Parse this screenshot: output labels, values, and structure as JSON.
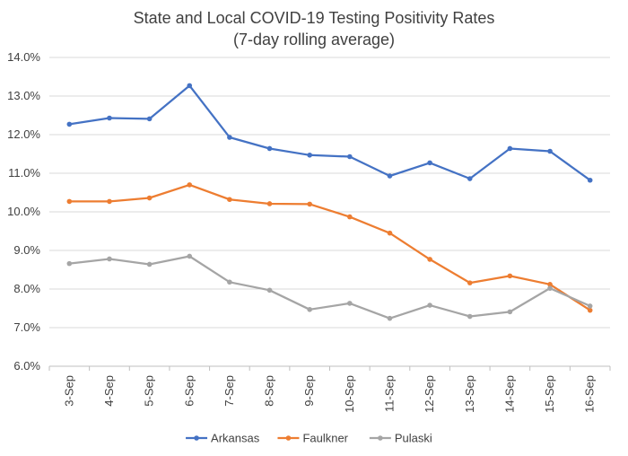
{
  "chart_data": {
    "type": "line",
    "title": "State and Local COVID-19 Testing Positivity Rates",
    "subtitle": "(7-day rolling average)",
    "xlabel": "",
    "ylabel": "",
    "categories": [
      "3-Sep",
      "4-Sep",
      "5-Sep",
      "6-Sep",
      "7-Sep",
      "8-Sep",
      "9-Sep",
      "10-Sep",
      "11-Sep",
      "12-Sep",
      "13-Sep",
      "14-Sep",
      "15-Sep",
      "16-Sep"
    ],
    "ylim": [
      6.0,
      14.0
    ],
    "yticks": [
      6.0,
      7.0,
      8.0,
      9.0,
      10.0,
      11.0,
      12.0,
      13.0,
      14.0
    ],
    "yticks_labels": [
      "6.0%",
      "7.0%",
      "8.0%",
      "9.0%",
      "10.0%",
      "11.0%",
      "12.0%",
      "13.0%",
      "14.0%"
    ],
    "grid": "horizontal",
    "legend_position": "bottom",
    "series": [
      {
        "name": "Arkansas",
        "color": "#4472C4",
        "values": [
          12.27,
          12.43,
          12.41,
          13.27,
          11.93,
          11.64,
          11.47,
          11.43,
          10.93,
          11.27,
          10.86,
          11.64,
          11.57,
          10.82
        ]
      },
      {
        "name": "Faulkner",
        "color": "#ED7D31",
        "values": [
          10.27,
          10.27,
          10.36,
          10.7,
          10.32,
          10.21,
          10.2,
          9.87,
          9.45,
          8.77,
          8.16,
          8.34,
          8.12,
          7.45
        ]
      },
      {
        "name": "Pulaski",
        "color": "#A5A5A5",
        "values": [
          8.66,
          8.78,
          8.64,
          8.85,
          8.18,
          7.97,
          7.47,
          7.63,
          7.24,
          7.58,
          7.29,
          7.41,
          8.02,
          7.56
        ]
      }
    ]
  }
}
